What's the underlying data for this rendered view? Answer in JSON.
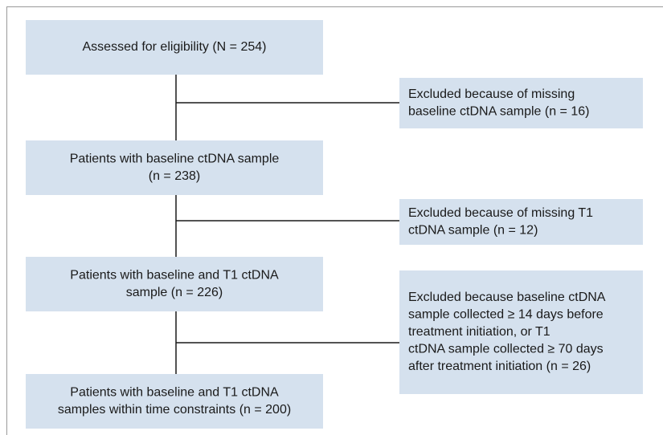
{
  "nodes": [
    {
      "lines": [
        "Assessed for eligibility (N = 254)"
      ]
    },
    {
      "lines": [
        "Excluded because of missing",
        "baseline ctDNA sample (n = 16)"
      ]
    },
    {
      "lines": [
        "Patients with baseline ctDNA sample",
        "(n = 238)"
      ]
    },
    {
      "lines": [
        "Excluded because of missing T1",
        "ctDNA sample (n = 12)"
      ]
    },
    {
      "lines": [
        "Patients with baseline and T1 ctDNA",
        "sample (n = 226)"
      ]
    },
    {
      "lines": [
        "Excluded because baseline ctDNA",
        "sample collected ≥ 14 days before",
        "treatment initiation, or T1",
        "ctDNA sample collected  ≥ 70 days",
        "after treatment initiation (n = 26)"
      ]
    },
    {
      "lines": [
        "Patients with baseline and T1 ctDNA",
        "samples within time constraints (n = 200)"
      ]
    }
  ]
}
